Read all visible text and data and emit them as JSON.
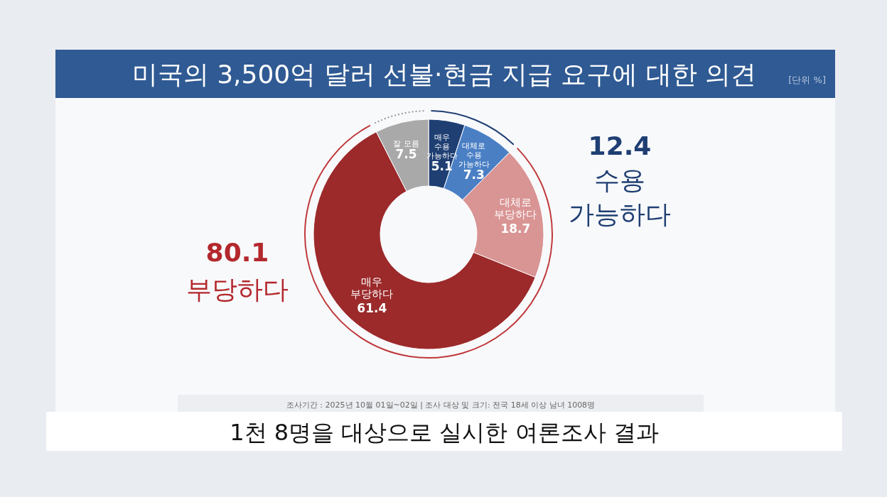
{
  "chart_data": {
    "type": "donut",
    "title": "미국의 3,500억 달러 선불·현금 지급 요구에 대한 의견",
    "categories": [
      "매우 수용 가능하다",
      "대체로 수용 가능하다",
      "대체로 부당하다",
      "매우 부당하다",
      "잘 모름"
    ],
    "values": [
      5.1,
      7.3,
      18.7,
      61.4,
      7.5
    ],
    "colors": [
      "#1f3f73",
      "#4a7fc4",
      "#d99494",
      "#9c2a2b",
      "#a9a9a9"
    ],
    "data_labels": true,
    "annotations": [
      "[단위 %]",
      "12.4 수용 가능하다",
      "80.1 부당하다",
      "조사기간 : 2025년 10월 01일~02일 | 조사 대상 및 크기: 전국 18세 이상 남녀 1008명",
      "1천 8명을 대상으로 실시한 여론조사 결과"
    ]
  }
}
